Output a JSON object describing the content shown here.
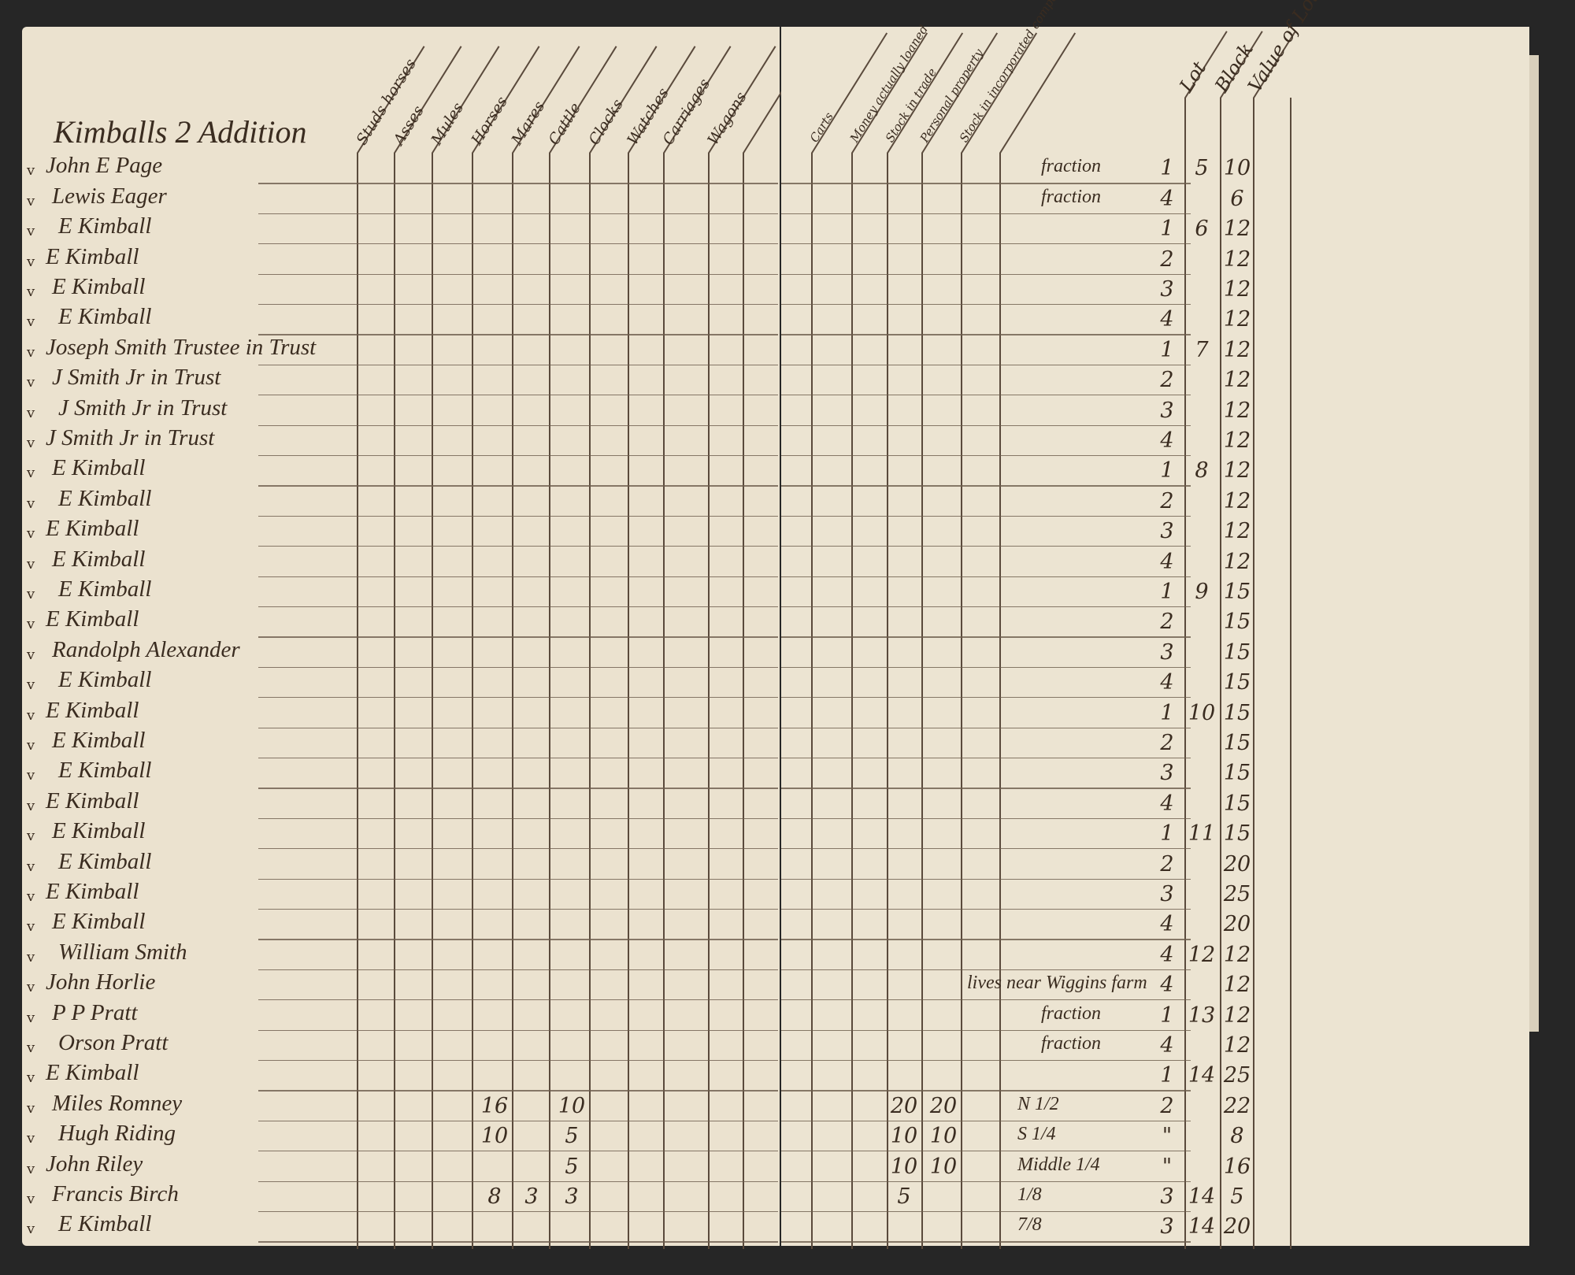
{
  "ledger": {
    "title": "Kimballs 2 Addition",
    "left_headers": [
      "Studs horses",
      "Asses",
      "Mules",
      "Horses",
      "Mares",
      "Cattle",
      "Clocks",
      "Watches",
      "Carriages",
      "Wagons"
    ],
    "right_headers": [
      "Carts",
      "Money actually loaned",
      "Stock in trade",
      "Personal property",
      "Stock in incorporated companies"
    ],
    "lot_headers": [
      "Lot",
      "Block",
      "Value of Lot"
    ],
    "check_mark": "v",
    "rows": [
      {
        "name": "John E Page",
        "lot": "1",
        "block": "5",
        "value": "10",
        "note": "fraction"
      },
      {
        "name": "Lewis Eager",
        "lot": "4",
        "block": "",
        "value": "6",
        "note": "fraction"
      },
      {
        "name": "E Kimball",
        "lot": "1",
        "block": "6",
        "value": "12"
      },
      {
        "name": "E Kimball",
        "lot": "2",
        "block": "",
        "value": "12"
      },
      {
        "name": "E Kimball",
        "lot": "3",
        "block": "",
        "value": "12"
      },
      {
        "name": "E Kimball",
        "lot": "4",
        "block": "",
        "value": "12"
      },
      {
        "name": "Joseph Smith Trustee in Trust",
        "lot": "1",
        "block": "7",
        "value": "12"
      },
      {
        "name": "J Smith Jr in Trust",
        "lot": "2",
        "block": "",
        "value": "12"
      },
      {
        "name": "J Smith Jr in Trust",
        "lot": "3",
        "block": "",
        "value": "12"
      },
      {
        "name": "J Smith Jr in Trust",
        "lot": "4",
        "block": "",
        "value": "12"
      },
      {
        "name": "E Kimball",
        "lot": "1",
        "block": "8",
        "value": "12"
      },
      {
        "name": "E Kimball",
        "lot": "2",
        "block": "",
        "value": "12"
      },
      {
        "name": "E Kimball",
        "lot": "3",
        "block": "",
        "value": "12"
      },
      {
        "name": "E Kimball",
        "lot": "4",
        "block": "",
        "value": "12"
      },
      {
        "name": "E Kimball",
        "lot": "1",
        "block": "9",
        "value": "15"
      },
      {
        "name": "E Kimball",
        "lot": "2",
        "block": "",
        "value": "15"
      },
      {
        "name": "Randolph Alexander",
        "lot": "3",
        "block": "",
        "value": "15"
      },
      {
        "name": "E Kimball",
        "lot": "4",
        "block": "",
        "value": "15"
      },
      {
        "name": "E Kimball",
        "lot": "1",
        "block": "10",
        "value": "15"
      },
      {
        "name": "E Kimball",
        "lot": "2",
        "block": "",
        "value": "15"
      },
      {
        "name": "E Kimball",
        "lot": "3",
        "block": "",
        "value": "15"
      },
      {
        "name": "E Kimball",
        "lot": "4",
        "block": "",
        "value": "15"
      },
      {
        "name": "E Kimball",
        "lot": "1",
        "block": "11",
        "value": "15"
      },
      {
        "name": "E Kimball",
        "lot": "2",
        "block": "",
        "value": "20"
      },
      {
        "name": "E Kimball",
        "lot": "3",
        "block": "",
        "value": "25"
      },
      {
        "name": "E Kimball",
        "lot": "4",
        "block": "",
        "value": "20"
      },
      {
        "name": "William Smith",
        "lot": "4",
        "block": "12",
        "value": "12"
      },
      {
        "name": "John Horlie",
        "lot": "4",
        "block": "",
        "value": "12",
        "note": "lives near Wiggins farm"
      },
      {
        "name": "P P Pratt",
        "lot": "1",
        "block": "13",
        "value": "12",
        "note": "fraction"
      },
      {
        "name": "Orson Pratt",
        "lot": "4",
        "block": "",
        "value": "12",
        "note": "fraction"
      },
      {
        "name": "E Kimball",
        "lot": "1",
        "block": "14",
        "value": "25"
      },
      {
        "name": "Miles Romney",
        "lot": "2",
        "block": "",
        "value": "22",
        "note": "N 1/2",
        "mares": "16",
        "clocks": "10",
        "personal": "20",
        "stock": "20"
      },
      {
        "name": "Hugh Riding",
        "lot": "\"",
        "block": "",
        "value": "8",
        "note": "S 1/4",
        "mares": "10",
        "clocks": "5",
        "personal": "10",
        "stock": "10"
      },
      {
        "name": "John Riley",
        "lot": "\"",
        "block": "",
        "value": "16",
        "note": "Middle 1/4",
        "clocks": "5",
        "personal": "10",
        "stock": "10"
      },
      {
        "name": "Francis Birch",
        "lot": "3",
        "block": "14",
        "value": "5",
        "note": "1/8",
        "mares": "8",
        "cattle": "3",
        "clocks": "3",
        "personal": "5"
      },
      {
        "name": "E Kimball",
        "lot": "3",
        "block": "14",
        "value": "20",
        "note": "7/8"
      }
    ]
  }
}
